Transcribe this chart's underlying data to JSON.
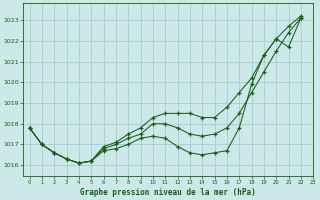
{
  "title": "Graphe pression niveau de la mer (hPa)",
  "bg_color": "#cce8e8",
  "grid_color": "#aacccc",
  "line_color": "#1a5c1a",
  "ylim": [
    1015.5,
    1023.8
  ],
  "yticks": [
    1016,
    1017,
    1018,
    1019,
    1020,
    1021,
    1022,
    1023
  ],
  "xticks": [
    0,
    1,
    2,
    3,
    4,
    5,
    6,
    7,
    8,
    9,
    10,
    11,
    12,
    13,
    14,
    15,
    16,
    17,
    18,
    19,
    20,
    21,
    22,
    23
  ],
  "s_low": [
    1017.8,
    1017.0,
    1016.6,
    1016.3,
    1016.1,
    1016.2,
    1016.7,
    1016.8,
    1017.0,
    1017.3,
    1017.4,
    1017.3,
    1016.9,
    1016.6,
    1016.5,
    1016.6,
    1016.7,
    1017.8,
    1019.9,
    1021.3,
    1022.1,
    1021.7,
    1023.1
  ],
  "s_mid": [
    1017.8,
    1017.0,
    1016.6,
    1016.3,
    1016.1,
    1016.2,
    1016.8,
    1017.0,
    1017.3,
    1017.5,
    1018.0,
    1018.0,
    1017.8,
    1017.5,
    1017.4,
    1017.5,
    1017.8,
    1018.5,
    1019.5,
    1020.5,
    1021.5,
    1022.4,
    1023.1
  ],
  "s_high": [
    1017.8,
    1017.0,
    1016.6,
    1016.3,
    1016.1,
    1016.2,
    1016.9,
    1017.1,
    1017.5,
    1017.8,
    1018.3,
    1018.5,
    1018.5,
    1018.5,
    1018.3,
    1018.3,
    1018.8,
    1019.5,
    1020.2,
    1021.3,
    1022.1,
    1022.7,
    1023.2
  ]
}
